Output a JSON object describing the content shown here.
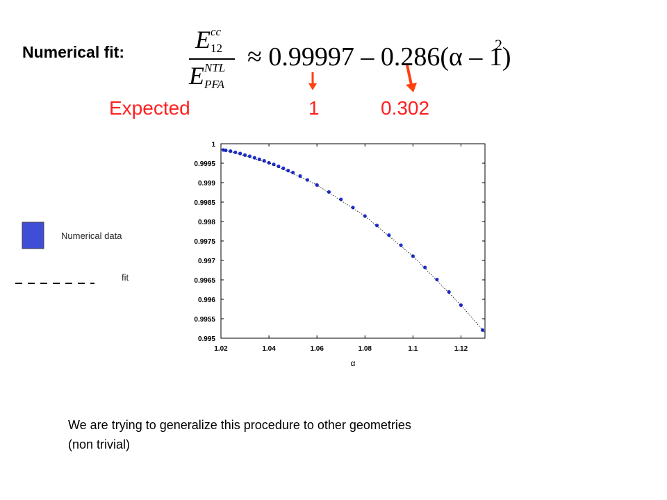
{
  "heading": "Numerical fit:",
  "formula": {
    "numerator": {
      "base": "E",
      "sub": "12",
      "sup": "cc"
    },
    "denominator": {
      "base": "E",
      "sub": "PFA",
      "sup": "NTL"
    },
    "rhs": "≈ 0.99997 – 0.286(α – 1)",
    "exponent": "2"
  },
  "expected": {
    "label": "Expected",
    "first": "1",
    "second": "0.302"
  },
  "footer": [
    "We are trying to generalize this procedure to other geometries",
    "(non trivial)"
  ],
  "chart_data": {
    "type": "scatter",
    "x_label": "α",
    "xlim": [
      1.02,
      1.13
    ],
    "xticks": [
      1.02,
      1.04,
      1.06,
      1.08,
      1.1,
      1.12
    ],
    "ylim": [
      0.995,
      1
    ],
    "yticks": [
      0.995,
      0.9955,
      0.996,
      0.9965,
      0.997,
      0.9975,
      0.998,
      0.9985,
      0.999,
      0.9995,
      1
    ],
    "series": [
      {
        "name": "Numerical data",
        "color": "#1f2fd0",
        "marker": "dot",
        "x": [
          1.021,
          1.022,
          1.024,
          1.026,
          1.028,
          1.03,
          1.032,
          1.034,
          1.036,
          1.038,
          1.04,
          1.042,
          1.044,
          1.046,
          1.048,
          1.05,
          1.053,
          1.056,
          1.06,
          1.065,
          1.07,
          1.075,
          1.08,
          1.085,
          1.09,
          1.095,
          1.1,
          1.105,
          1.11,
          1.115,
          1.12,
          1.129
        ],
        "values": [
          0.99984,
          0.99983,
          0.99981,
          0.99978,
          0.99975,
          0.99971,
          0.99968,
          0.99964,
          0.9996,
          0.99956,
          0.99951,
          0.99947,
          0.99942,
          0.99937,
          0.99931,
          0.99926,
          0.99917,
          0.99907,
          0.99894,
          0.99876,
          0.99857,
          0.99836,
          0.99814,
          0.9979,
          0.99765,
          0.99739,
          0.99711,
          0.99682,
          0.99651,
          0.99619,
          0.99585,
          0.99521
        ]
      },
      {
        "name": "fit",
        "color": "#000000",
        "marker": "dashed-line",
        "x": [
          1.02,
          1.04,
          1.06,
          1.08,
          1.1,
          1.12,
          1.13
        ],
        "values": [
          0.99986,
          0.99951,
          0.99894,
          0.99814,
          0.99711,
          0.99585,
          0.99514
        ]
      }
    ]
  }
}
